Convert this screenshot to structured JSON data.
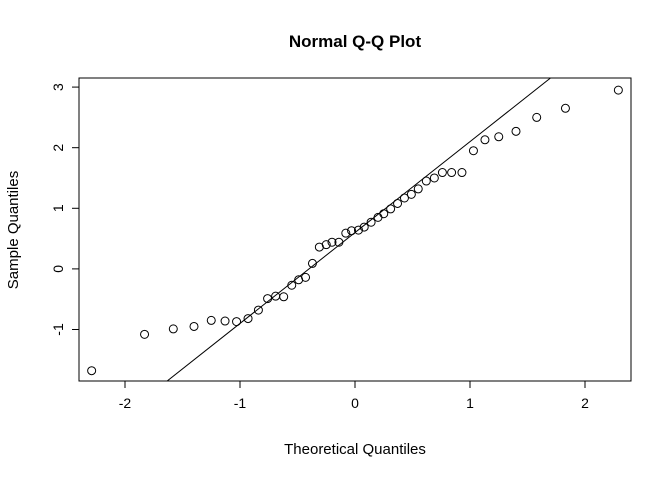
{
  "chart_data": {
    "type": "scatter",
    "title": "Normal Q-Q Plot",
    "xlabel": "Theoretical Quantiles",
    "ylabel": "Sample Quantiles",
    "xlim": [
      -2.4,
      2.4
    ],
    "ylim": [
      -1.85,
      3.15
    ],
    "x_ticks": [
      -2,
      -1,
      0,
      1,
      2
    ],
    "x_tick_labels": [
      "-2",
      "-1",
      "0",
      "1",
      "2"
    ],
    "y_ticks": [
      -1,
      0,
      1,
      2,
      3
    ],
    "y_tick_labels": [
      "-1",
      "0",
      "1",
      "2",
      "3"
    ],
    "grid": false,
    "legend": "none",
    "reference_line": {
      "intercept": 0.6,
      "slope": 1.5
    },
    "points": [
      [
        -2.29,
        -1.68
      ],
      [
        -1.83,
        -1.08
      ],
      [
        -1.58,
        -0.99
      ],
      [
        -1.4,
        -0.95
      ],
      [
        -1.25,
        -0.85
      ],
      [
        -1.13,
        -0.86
      ],
      [
        -1.03,
        -0.87
      ],
      [
        -0.93,
        -0.82
      ],
      [
        -0.84,
        -0.68
      ],
      [
        -0.76,
        -0.49
      ],
      [
        -0.69,
        -0.45
      ],
      [
        -0.62,
        -0.46
      ],
      [
        -0.55,
        -0.27
      ],
      [
        -0.49,
        -0.18
      ],
      [
        -0.43,
        -0.14
      ],
      [
        -0.37,
        0.09
      ],
      [
        -0.31,
        0.36
      ],
      [
        -0.25,
        0.4
      ],
      [
        -0.2,
        0.44
      ],
      [
        -0.14,
        0.44
      ],
      [
        -0.08,
        0.59
      ],
      [
        -0.03,
        0.63
      ],
      [
        0.03,
        0.64
      ],
      [
        0.08,
        0.69
      ],
      [
        0.14,
        0.77
      ],
      [
        0.2,
        0.85
      ],
      [
        0.25,
        0.91
      ],
      [
        0.31,
        0.99
      ],
      [
        0.37,
        1.08
      ],
      [
        0.43,
        1.17
      ],
      [
        0.49,
        1.23
      ],
      [
        0.55,
        1.32
      ],
      [
        0.62,
        1.45
      ],
      [
        0.69,
        1.5
      ],
      [
        0.76,
        1.59
      ],
      [
        0.84,
        1.59
      ],
      [
        0.93,
        1.59
      ],
      [
        1.03,
        1.95
      ],
      [
        1.13,
        2.13
      ],
      [
        1.25,
        2.18
      ],
      [
        1.4,
        2.27
      ],
      [
        1.58,
        2.5
      ],
      [
        1.83,
        2.65
      ],
      [
        2.29,
        2.95
      ]
    ]
  }
}
